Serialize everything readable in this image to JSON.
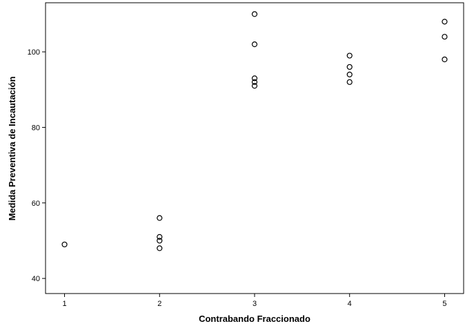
{
  "chart_data": {
    "type": "scatter",
    "title": "",
    "xlabel": "Contrabando Fraccionado",
    "ylabel": "Medida Preventiva de Incautación",
    "xlim": [
      0.8,
      5.2
    ],
    "ylim": [
      36,
      113
    ],
    "x_ticks": [
      1,
      2,
      3,
      4,
      5
    ],
    "y_ticks": [
      40,
      60,
      80,
      100
    ],
    "grid": false,
    "legend": "none",
    "marker": "hollow-circle",
    "series": [
      {
        "points": [
          {
            "x": 1,
            "y": 49
          },
          {
            "x": 2,
            "y": 56
          },
          {
            "x": 2,
            "y": 51
          },
          {
            "x": 2,
            "y": 50
          },
          {
            "x": 2,
            "y": 48
          },
          {
            "x": 3,
            "y": 110
          },
          {
            "x": 3,
            "y": 102
          },
          {
            "x": 3,
            "y": 93
          },
          {
            "x": 3,
            "y": 92
          },
          {
            "x": 3,
            "y": 91
          },
          {
            "x": 4,
            "y": 99
          },
          {
            "x": 4,
            "y": 96
          },
          {
            "x": 4,
            "y": 94
          },
          {
            "x": 4,
            "y": 92
          },
          {
            "x": 5,
            "y": 108
          },
          {
            "x": 5,
            "y": 104
          },
          {
            "x": 5,
            "y": 98
          }
        ]
      }
    ]
  },
  "colors": {
    "marker_stroke": "#000000",
    "axis": "#000000",
    "background": "#ffffff"
  }
}
